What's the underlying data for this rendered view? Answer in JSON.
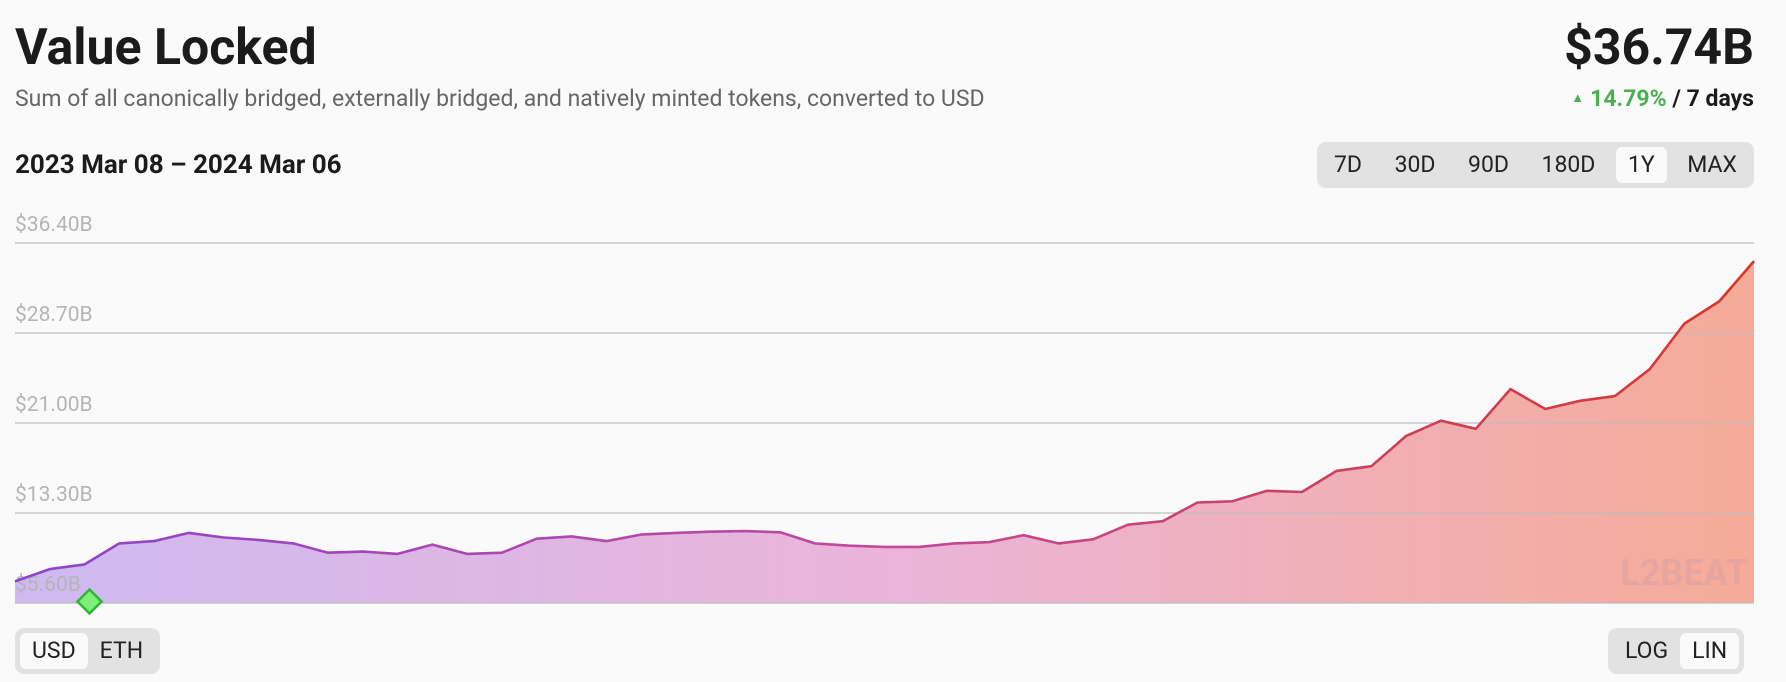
{
  "header": {
    "title": "Value Locked",
    "subtitle": "Sum of all canonically bridged, externally bridged, and natively minted tokens, converted to USD",
    "headline_value": "$36.74B",
    "change": "14.79%",
    "change_period": "/ 7 days",
    "date_range": "2023 Mar 08 – 2024 Mar 06"
  },
  "range_buttons": [
    "7D",
    "30D",
    "90D",
    "180D",
    "1Y",
    "MAX"
  ],
  "selected_range": "1Y",
  "unit_buttons": [
    "USD",
    "ETH"
  ],
  "selected_unit": "USD",
  "scale_buttons": [
    "LOG",
    "LIN"
  ],
  "selected_scale": "LIN",
  "watermark": "L2BEAT",
  "chart_data": {
    "type": "area",
    "values": [
      7.45,
      8.5,
      8.9,
      10.7,
      10.9,
      11.6,
      11.2,
      11.0,
      10.7,
      9.9,
      10.0,
      9.8,
      10.6,
      9.8,
      9.9,
      11.1,
      11.3,
      10.9,
      11.45,
      11.6,
      11.7,
      11.75,
      11.65,
      10.7,
      10.5,
      10.4,
      10.4,
      10.7,
      10.8,
      11.4,
      10.7,
      11.05,
      12.3,
      12.6,
      14.2,
      14.3,
      15.2,
      15.1,
      16.9,
      17.3,
      19.9,
      21.2,
      20.5,
      23.9,
      22.2,
      22.9,
      23.3,
      25.6,
      29.5,
      31.4,
      34.85
    ],
    "ylim": [
      5.6,
      36.4
    ],
    "yticks": [
      {
        "value": 5.6,
        "label": "$5.60B"
      },
      {
        "value": 13.3,
        "label": "$13.30B"
      },
      {
        "value": 21.0,
        "label": "$21.00B"
      },
      {
        "value": 28.7,
        "label": "$28.70B"
      },
      {
        "value": 36.4,
        "label": "$36.40B"
      }
    ],
    "grid": true,
    "line_colors": [
      "#8e44c9",
      "#c14a9c",
      "#d8362a"
    ],
    "fill_colors": [
      "#c6aef0",
      "#e8a8d4",
      "#f59d86"
    ]
  }
}
